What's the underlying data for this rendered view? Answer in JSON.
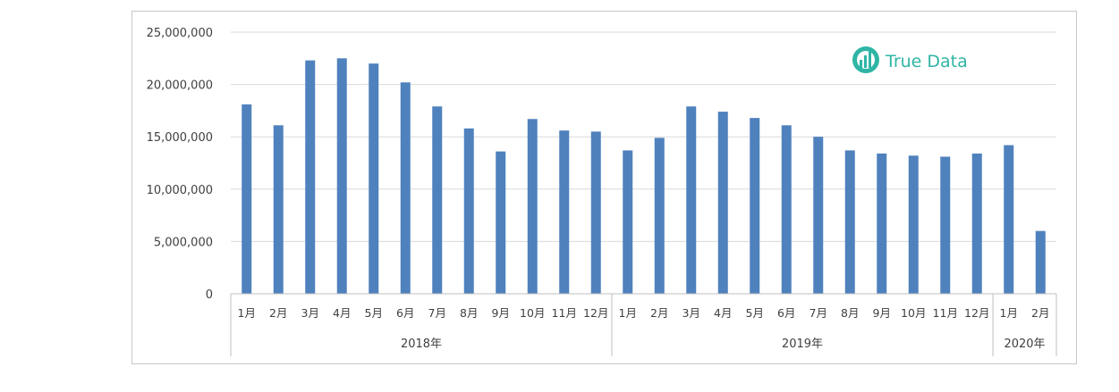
{
  "chart_data": {
    "type": "bar",
    "title": "",
    "xlabel": "",
    "ylabel": "",
    "ylim": [
      0,
      25000000
    ],
    "yticks": [
      0,
      5000000,
      10000000,
      15000000,
      20000000,
      25000000
    ],
    "ytick_labels": [
      "0",
      "5,000,000",
      "10,000,000",
      "15,000,000",
      "20,000,000",
      "25,000,000"
    ],
    "grid": true,
    "legend": "none",
    "categories": [
      "1月",
      "2月",
      "3月",
      "4月",
      "5月",
      "6月",
      "7月",
      "8月",
      "9月",
      "10月",
      "11月",
      "12月",
      "1月",
      "2月",
      "3月",
      "4月",
      "5月",
      "6月",
      "7月",
      "8月",
      "9月",
      "10月",
      "11月",
      "12月",
      "1月",
      "2月"
    ],
    "groups": [
      {
        "label": "2018年",
        "count": 12
      },
      {
        "label": "2019年",
        "count": 12
      },
      {
        "label": "2020年",
        "count": 2
      }
    ],
    "series": [
      {
        "values": [
          18100000,
          16100000,
          22300000,
          22500000,
          22000000,
          20200000,
          17900000,
          15800000,
          13600000,
          16700000,
          15600000,
          15500000,
          13700000,
          14900000,
          17900000,
          17400000,
          16800000,
          16100000,
          15000000,
          13700000,
          13400000,
          13200000,
          13100000,
          13400000,
          14200000,
          6000000
        ],
        "color": "#4f81bd"
      }
    ]
  },
  "logo": {
    "text": "True Data",
    "color": "#2fb5a5"
  },
  "colors": {
    "bar": "#4f81bd",
    "grid": "#d9d9d9",
    "axis": "#bfbfbf"
  }
}
